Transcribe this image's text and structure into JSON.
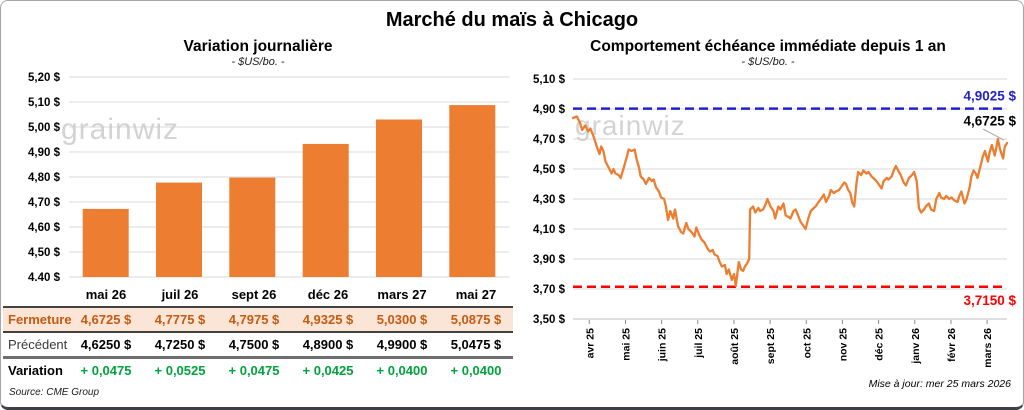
{
  "header": {
    "title": "Marché du maïs à Chicago"
  },
  "source": "Source: CME Group",
  "updated": "Mise à jour: mer 25 mars 2026",
  "watermark": "grainwiz",
  "colors": {
    "orange": "#ED7D31",
    "blue": "#2222CC",
    "red": "#FF0000",
    "green": "#00A33C",
    "peach": "#FBE5D6",
    "rust": "#C55A11",
    "grid": "#DADADA"
  },
  "table": {
    "columns": [
      "mai 26",
      "juil 26",
      "sept 26",
      "déc 26",
      "mars 27",
      "mai 27"
    ],
    "rows": [
      {
        "label": "Fermeture",
        "values": [
          "4,6725 $",
          "4,7775 $",
          "4,7975 $",
          "4,9325 $",
          "5,0300 $",
          "5,0875 $"
        ]
      },
      {
        "label": "Précédent",
        "values": [
          "4,6250 $",
          "4,7250 $",
          "4,7500 $",
          "4,8900 $",
          "4,9900 $",
          "5,0475 $"
        ]
      },
      {
        "label": "Variation",
        "values": [
          "+ 0,0475",
          "+ 0,0525",
          "+ 0,0475",
          "+ 0,0425",
          "+ 0,0400",
          "+ 0,0400"
        ]
      }
    ]
  },
  "chart_data": [
    {
      "type": "bar",
      "title": "Variation journalière",
      "subtitle": "- $US/bo. -",
      "categories": [
        "mai 26",
        "juil 26",
        "sept 26",
        "déc 26",
        "mars 27",
        "mai 27"
      ],
      "values": [
        4.6725,
        4.7775,
        4.7975,
        4.9325,
        5.03,
        5.0875
      ],
      "ylim": [
        4.4,
        5.2
      ],
      "ytick_step": 0.1,
      "ytick_labels": [
        "4,40 $",
        "4,50 $",
        "4,60 $",
        "4,70 $",
        "4,80 $",
        "4,90 $",
        "5,00 $",
        "5,10 $",
        "5,20 $"
      ],
      "bar_color": "#ED7D31",
      "grid": true,
      "legend": "none"
    },
    {
      "type": "line",
      "title": "Comportement échéance immédiate depuis 1 an",
      "subtitle": "- $US/bo. -",
      "x_labels": [
        "avr 25",
        "mai 25",
        "juin 25",
        "juil 25",
        "août 25",
        "sept 25",
        "oct 25",
        "nov 25",
        "déc 25",
        "janv 26",
        "févr 26",
        "mars 26"
      ],
      "ylim": [
        3.5,
        5.1
      ],
      "ytick_step": 0.2,
      "ytick_labels": [
        "3,50 $",
        "3,70 $",
        "3,90 $",
        "4,10 $",
        "4,30 $",
        "4,50 $",
        "4,70 $",
        "4,90 $",
        "5,10 $"
      ],
      "line_color": "#ED7D31",
      "grid": true,
      "legend": "none",
      "ref_lines": [
        {
          "value": 4.9025,
          "label": "4,9025 $",
          "color": "#2222CC"
        },
        {
          "value": 3.715,
          "label": "3,7150 $",
          "color": "#FF0000"
        }
      ],
      "last_value": 4.6725,
      "last_label": "4,6725 $",
      "series": [
        {
          "name": "échéance immédiate",
          "points": [
            [
              0.0,
              4.84
            ],
            [
              0.009,
              4.85
            ],
            [
              0.016,
              4.81
            ],
            [
              0.021,
              4.76
            ],
            [
              0.028,
              4.79
            ],
            [
              0.035,
              4.75
            ],
            [
              0.04,
              4.77
            ],
            [
              0.047,
              4.72
            ],
            [
              0.056,
              4.64
            ],
            [
              0.061,
              4.6
            ],
            [
              0.065,
              4.65
            ],
            [
              0.07,
              4.62
            ],
            [
              0.075,
              4.55
            ],
            [
              0.082,
              4.51
            ],
            [
              0.089,
              4.47
            ],
            [
              0.093,
              4.5
            ],
            [
              0.098,
              4.47
            ],
            [
              0.105,
              4.46
            ],
            [
              0.11,
              4.44
            ],
            [
              0.117,
              4.51
            ],
            [
              0.124,
              4.58
            ],
            [
              0.128,
              4.63
            ],
            [
              0.135,
              4.62
            ],
            [
              0.142,
              4.63
            ],
            [
              0.147,
              4.56
            ],
            [
              0.152,
              4.51
            ],
            [
              0.156,
              4.45
            ],
            [
              0.163,
              4.43
            ],
            [
              0.168,
              4.4
            ],
            [
              0.175,
              4.44
            ],
            [
              0.182,
              4.42
            ],
            [
              0.186,
              4.43
            ],
            [
              0.191,
              4.38
            ],
            [
              0.198,
              4.35
            ],
            [
              0.203,
              4.31
            ],
            [
              0.21,
              4.3
            ],
            [
              0.214,
              4.25
            ],
            [
              0.219,
              4.16
            ],
            [
              0.224,
              4.22
            ],
            [
              0.231,
              4.17
            ],
            [
              0.235,
              4.23
            ],
            [
              0.242,
              4.12
            ],
            [
              0.249,
              4.08
            ],
            [
              0.254,
              4.07
            ],
            [
              0.261,
              4.14
            ],
            [
              0.266,
              4.1
            ],
            [
              0.273,
              4.08
            ],
            [
              0.28,
              4.05
            ],
            [
              0.284,
              4.11
            ],
            [
              0.291,
              4.06
            ],
            [
              0.296,
              4.03
            ],
            [
              0.303,
              4.01
            ],
            [
              0.31,
              3.97
            ],
            [
              0.315,
              3.95
            ],
            [
              0.322,
              3.96
            ],
            [
              0.326,
              3.93
            ],
            [
              0.333,
              3.92
            ],
            [
              0.338,
              3.88
            ],
            [
              0.343,
              3.85
            ],
            [
              0.35,
              3.86
            ],
            [
              0.354,
              3.8
            ],
            [
              0.359,
              3.83
            ],
            [
              0.366,
              3.76
            ],
            [
              0.371,
              3.8
            ],
            [
              0.375,
              3.72
            ],
            [
              0.382,
              3.88
            ],
            [
              0.387,
              3.83
            ],
            [
              0.392,
              3.82
            ],
            [
              0.396,
              3.85
            ],
            [
              0.401,
              3.87
            ],
            [
              0.406,
              3.9
            ],
            [
              0.408,
              4.23
            ],
            [
              0.415,
              4.25
            ],
            [
              0.42,
              4.21
            ],
            [
              0.427,
              4.24
            ],
            [
              0.431,
              4.22
            ],
            [
              0.438,
              4.23
            ],
            [
              0.443,
              4.26
            ],
            [
              0.448,
              4.3
            ],
            [
              0.455,
              4.25
            ],
            [
              0.462,
              4.22
            ],
            [
              0.466,
              4.17
            ],
            [
              0.473,
              4.25
            ],
            [
              0.478,
              4.23
            ],
            [
              0.485,
              4.27
            ],
            [
              0.49,
              4.19
            ],
            [
              0.497,
              4.18
            ],
            [
              0.501,
              4.17
            ],
            [
              0.508,
              4.22
            ],
            [
              0.513,
              4.23
            ],
            [
              0.52,
              4.18
            ],
            [
              0.524,
              4.15
            ],
            [
              0.531,
              4.12
            ],
            [
              0.536,
              4.1
            ],
            [
              0.543,
              4.18
            ],
            [
              0.548,
              4.22
            ],
            [
              0.555,
              4.24
            ],
            [
              0.559,
              4.25
            ],
            [
              0.566,
              4.28
            ],
            [
              0.571,
              4.3
            ],
            [
              0.578,
              4.33
            ],
            [
              0.583,
              4.28
            ],
            [
              0.59,
              4.32
            ],
            [
              0.594,
              4.36
            ],
            [
              0.601,
              4.34
            ],
            [
              0.606,
              4.35
            ],
            [
              0.613,
              4.36
            ],
            [
              0.618,
              4.38
            ],
            [
              0.625,
              4.41
            ],
            [
              0.629,
              4.4
            ],
            [
              0.634,
              4.36
            ],
            [
              0.639,
              4.34
            ],
            [
              0.643,
              4.28
            ],
            [
              0.648,
              4.25
            ],
            [
              0.653,
              4.4
            ],
            [
              0.657,
              4.48
            ],
            [
              0.664,
              4.46
            ],
            [
              0.669,
              4.49
            ],
            [
              0.676,
              4.47
            ],
            [
              0.681,
              4.48
            ],
            [
              0.688,
              4.45
            ],
            [
              0.692,
              4.44
            ],
            [
              0.699,
              4.42
            ],
            [
              0.704,
              4.4
            ],
            [
              0.711,
              4.37
            ],
            [
              0.716,
              4.42
            ],
            [
              0.723,
              4.44
            ],
            [
              0.727,
              4.43
            ],
            [
              0.734,
              4.45
            ],
            [
              0.739,
              4.49
            ],
            [
              0.744,
              4.52
            ],
            [
              0.751,
              4.48
            ],
            [
              0.755,
              4.46
            ],
            [
              0.762,
              4.41
            ],
            [
              0.767,
              4.39
            ],
            [
              0.774,
              4.44
            ],
            [
              0.781,
              4.46
            ],
            [
              0.786,
              4.48
            ],
            [
              0.792,
              4.42
            ],
            [
              0.797,
              4.24
            ],
            [
              0.802,
              4.21
            ],
            [
              0.809,
              4.23
            ],
            [
              0.813,
              4.25
            ],
            [
              0.82,
              4.27
            ],
            [
              0.825,
              4.23
            ],
            [
              0.832,
              4.22
            ],
            [
              0.837,
              4.3
            ],
            [
              0.844,
              4.34
            ],
            [
              0.848,
              4.31
            ],
            [
              0.855,
              4.3
            ],
            [
              0.86,
              4.32
            ],
            [
              0.867,
              4.3
            ],
            [
              0.872,
              4.31
            ],
            [
              0.879,
              4.29
            ],
            [
              0.886,
              4.28
            ],
            [
              0.89,
              4.32
            ],
            [
              0.895,
              4.35
            ],
            [
              0.902,
              4.27
            ],
            [
              0.907,
              4.3
            ],
            [
              0.914,
              4.38
            ],
            [
              0.918,
              4.45
            ],
            [
              0.923,
              4.49
            ],
            [
              0.928,
              4.47
            ],
            [
              0.932,
              4.44
            ],
            [
              0.939,
              4.52
            ],
            [
              0.944,
              4.58
            ],
            [
              0.949,
              4.62
            ],
            [
              0.956,
              4.55
            ],
            [
              0.96,
              4.61
            ],
            [
              0.965,
              4.66
            ],
            [
              0.972,
              4.59
            ],
            [
              0.979,
              4.7
            ],
            [
              0.984,
              4.63
            ],
            [
              0.991,
              4.57
            ],
            [
              0.995,
              4.65
            ],
            [
              1.0,
              4.6725
            ]
          ]
        }
      ]
    }
  ]
}
